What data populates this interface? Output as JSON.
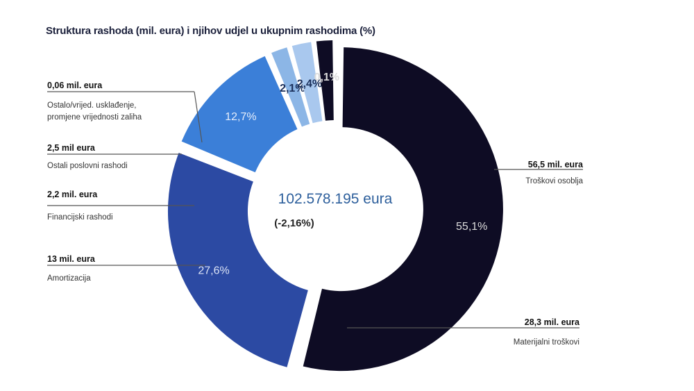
{
  "chart_data": {
    "type": "pie",
    "title": "Struktura rashoda (mil. eura) i njihov udjel u ukupnim rashodima (%)",
    "center": {
      "total": "102.578.195 eura",
      "change": "(-2,16%)"
    },
    "slices": [
      {
        "name": "Troškovi osoblja",
        "value": 56.5,
        "value_label": "56,5 mil. eura",
        "percent": 55.1,
        "percent_label": "55,1%",
        "color": "#0e0c24",
        "text_color": "#dcdcdc"
      },
      {
        "name": "Materijalni troškovi",
        "value": 28.3,
        "value_label": "28,3 mil. eura",
        "percent": 27.6,
        "percent_label": "27,6%",
        "color": "#2c4aa3",
        "text_color": "#dbe3f5"
      },
      {
        "name": "Amortizacija",
        "value": 13,
        "value_label": "13 mil. eura",
        "percent": 12.7,
        "percent_label": "12,7%",
        "color": "#3b7fd8",
        "text_color": "#e6eefb"
      },
      {
        "name": "Financijski rashodi",
        "value": 2.2,
        "value_label": "2,2 mil. eura",
        "percent": 2.1,
        "percent_label": "2,1%",
        "color": "#8cb6e6",
        "text_color": "#1a2f5a"
      },
      {
        "name": "Ostali poslovni rashodi",
        "value": 2.5,
        "value_label": "2,5 mil eura",
        "percent": 2.4,
        "percent_label": "2,4%",
        "color": "#a9c8ee",
        "text_color": "#1a2f5a"
      },
      {
        "name": "Ostalo/vrijed. usklađenje, promjene vrijednosti zaliha",
        "value": 0.06,
        "value_label": "0,06 mil. eura",
        "percent": 0.1,
        "percent_label": "0,1%",
        "color": "#0e0c24",
        "text_color": "#dcdcdc"
      }
    ]
  }
}
